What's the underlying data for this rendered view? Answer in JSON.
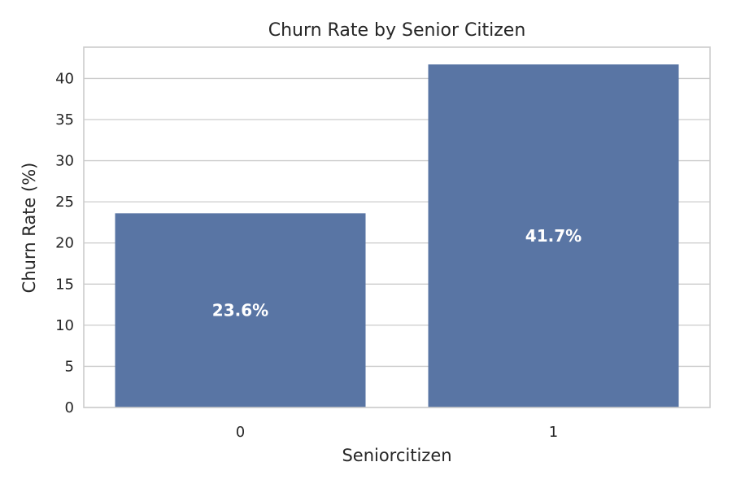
{
  "chart_data": {
    "type": "bar",
    "title": "Churn Rate by Senior Citizen",
    "xlabel": "Seniorcitizen",
    "ylabel": "Churn Rate (%)",
    "categories": [
      "0",
      "1"
    ],
    "values": [
      23.6,
      41.7
    ],
    "data_labels": [
      "23.6%",
      "41.7%"
    ],
    "yticks": [
      0,
      5,
      10,
      15,
      20,
      25,
      30,
      35,
      40
    ],
    "ylim": [
      0,
      43.8
    ],
    "grid": "horizontal",
    "bar_color": "#5975a4",
    "grid_color": "#cccccc"
  }
}
